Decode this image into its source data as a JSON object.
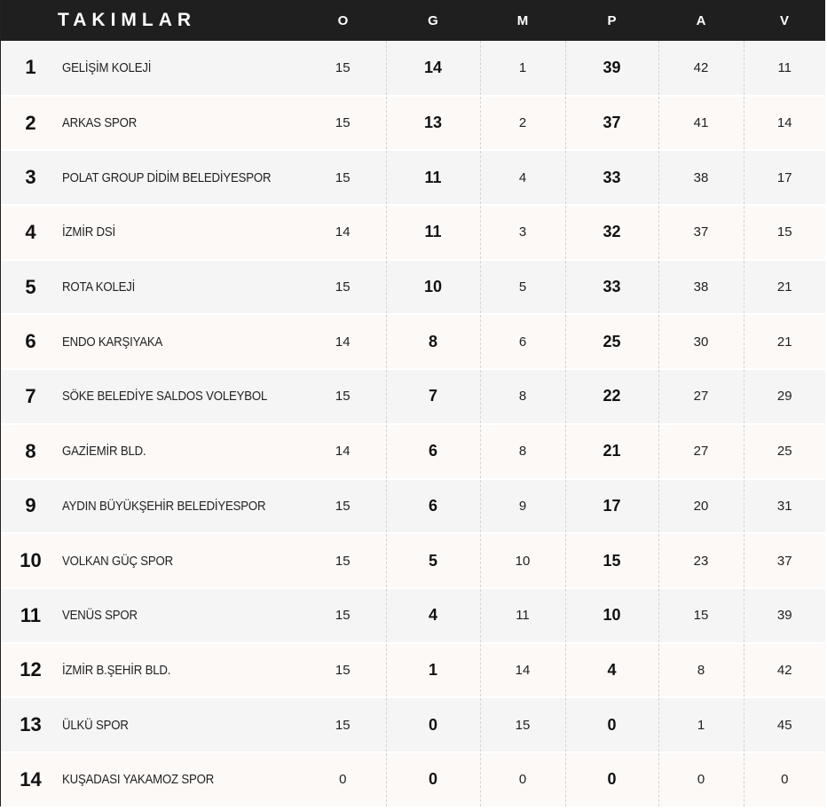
{
  "header": {
    "team": "TAKIMLAR",
    "o": "O",
    "g": "G",
    "m": "M",
    "p": "P",
    "a": "A",
    "v": "V"
  },
  "rows": [
    {
      "rank": "1",
      "team": "GELİŞİM KOLEJİ",
      "o": "15",
      "g": "14",
      "m": "1",
      "p": "39",
      "a": "42",
      "v": "11"
    },
    {
      "rank": "2",
      "team": "ARKAS SPOR",
      "o": "15",
      "g": "13",
      "m": "2",
      "p": "37",
      "a": "41",
      "v": "14"
    },
    {
      "rank": "3",
      "team": "POLAT GROUP DİDİM BELEDİYESPOR",
      "o": "15",
      "g": "11",
      "m": "4",
      "p": "33",
      "a": "38",
      "v": "17"
    },
    {
      "rank": "4",
      "team": "İZMİR DSİ",
      "o": "14",
      "g": "11",
      "m": "3",
      "p": "32",
      "a": "37",
      "v": "15"
    },
    {
      "rank": "5",
      "team": "ROTA KOLEJİ",
      "o": "15",
      "g": "10",
      "m": "5",
      "p": "33",
      "a": "38",
      "v": "21"
    },
    {
      "rank": "6",
      "team": "ENDO KARŞIYAKA",
      "o": "14",
      "g": "8",
      "m": "6",
      "p": "25",
      "a": "30",
      "v": "21"
    },
    {
      "rank": "7",
      "team": "SÖKE BELEDİYE SALDOS VOLEYBOL",
      "o": "15",
      "g": "7",
      "m": "8",
      "p": "22",
      "a": "27",
      "v": "29"
    },
    {
      "rank": "8",
      "team": "GAZİEMİR BLD.",
      "o": "14",
      "g": "6",
      "m": "8",
      "p": "21",
      "a": "27",
      "v": "25"
    },
    {
      "rank": "9",
      "team": "AYDIN BÜYÜKŞEHİR BELEDİYESPOR",
      "o": "15",
      "g": "6",
      "m": "9",
      "p": "17",
      "a": "20",
      "v": "31"
    },
    {
      "rank": "10",
      "team": "VOLKAN GÜÇ SPOR",
      "o": "15",
      "g": "5",
      "m": "10",
      "p": "15",
      "a": "23",
      "v": "37"
    },
    {
      "rank": "11",
      "team": "VENÜS SPOR",
      "o": "15",
      "g": "4",
      "m": "11",
      "p": "10",
      "a": "15",
      "v": "39"
    },
    {
      "rank": "12",
      "team": "İZMİR B.ŞEHİR BLD.",
      "o": "15",
      "g": "1",
      "m": "14",
      "p": "4",
      "a": "8",
      "v": "42"
    },
    {
      "rank": "13",
      "team": "ÜLKÜ SPOR",
      "o": "15",
      "g": "0",
      "m": "15",
      "p": "0",
      "a": "1",
      "v": "45"
    },
    {
      "rank": "14",
      "team": "KUŞADASI YAKAMOZ SPOR",
      "o": "0",
      "g": "0",
      "m": "0",
      "p": "0",
      "a": "0",
      "v": "0"
    }
  ]
}
